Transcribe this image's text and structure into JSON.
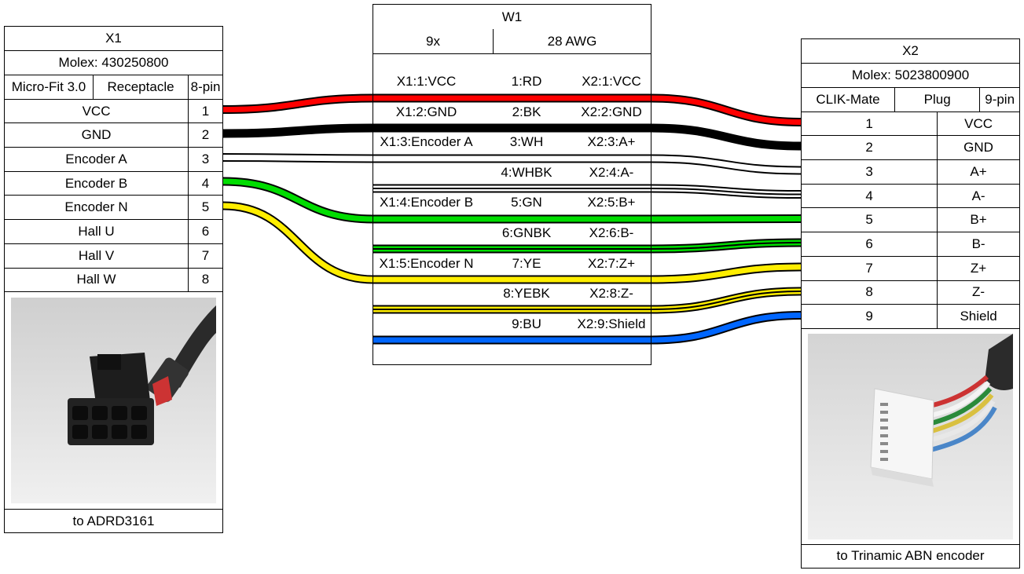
{
  "x1": {
    "name": "X1",
    "part": "Molex: 430250800",
    "series": "Micro-Fit 3.0",
    "gender": "Receptacle",
    "pins": "8-pin",
    "rows": [
      {
        "label": "VCC",
        "pin": "1"
      },
      {
        "label": "GND",
        "pin": "2"
      },
      {
        "label": "Encoder A",
        "pin": "3"
      },
      {
        "label": "Encoder B",
        "pin": "4"
      },
      {
        "label": "Encoder N",
        "pin": "5"
      },
      {
        "label": "Hall U",
        "pin": "6"
      },
      {
        "label": "Hall V",
        "pin": "7"
      },
      {
        "label": "Hall W",
        "pin": "8"
      }
    ],
    "note": "to ADRD3161"
  },
  "w1": {
    "name": "W1",
    "count": "9x",
    "gauge": "28 AWG",
    "rows": [
      {
        "from": "X1:1:VCC",
        "wire": "1:RD",
        "to": "X2:1:VCC"
      },
      {
        "from": "X1:2:GND",
        "wire": "2:BK",
        "to": "X2:2:GND"
      },
      {
        "from": "X1:3:Encoder A",
        "wire": "3:WH",
        "to": "X2:3:A+"
      },
      {
        "from": "",
        "wire": "4:WHBK",
        "to": "X2:4:A-"
      },
      {
        "from": "X1:4:Encoder B",
        "wire": "5:GN",
        "to": "X2:5:B+"
      },
      {
        "from": "",
        "wire": "6:GNBK",
        "to": "X2:6:B-"
      },
      {
        "from": "X1:5:Encoder N",
        "wire": "7:YE",
        "to": "X2:7:Z+"
      },
      {
        "from": "",
        "wire": "8:YEBK",
        "to": "X2:8:Z-"
      },
      {
        "from": "",
        "wire": "9:BU",
        "to": "X2:9:Shield"
      }
    ]
  },
  "x2": {
    "name": "X2",
    "part": "Molex: 5023800900",
    "series": "CLIK-Mate",
    "gender": "Plug",
    "pins": "9-pin",
    "rows": [
      {
        "pin": "1",
        "label": "VCC"
      },
      {
        "pin": "2",
        "label": "GND"
      },
      {
        "pin": "3",
        "label": "A+"
      },
      {
        "pin": "4",
        "label": "A-"
      },
      {
        "pin": "5",
        "label": "B+"
      },
      {
        "pin": "6",
        "label": "B-"
      },
      {
        "pin": "7",
        "label": "Z+"
      },
      {
        "pin": "8",
        "label": "Z-"
      },
      {
        "pin": "9",
        "label": "Shield"
      }
    ],
    "note": "to Trinamic ABN encoder"
  },
  "colors": {
    "RD": "#ff0000",
    "BK": "#000000",
    "WH": "#ffffff",
    "GN": "#00dd00",
    "YE": "#ffee00",
    "BU": "#0066ff"
  }
}
